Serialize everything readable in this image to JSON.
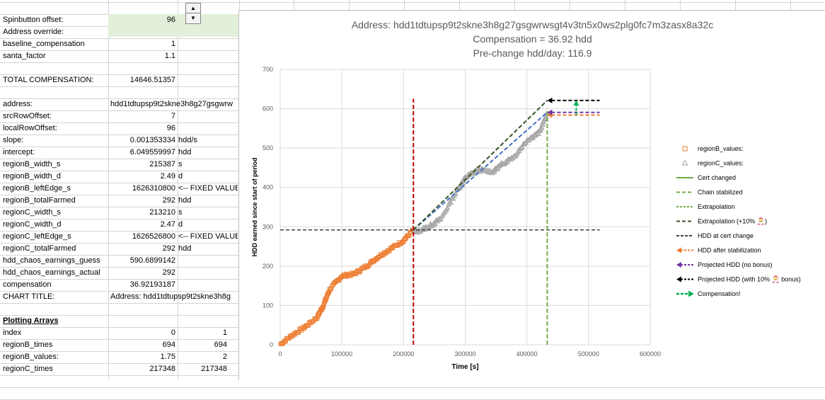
{
  "sheet": {
    "rows": [
      {
        "label": "Spinbutton offset:",
        "value": "96",
        "value2": ""
      },
      {
        "label": "Address override:",
        "value": "",
        "value2": ""
      },
      {
        "label": "baseline_compensation",
        "value": "1",
        "value2": ""
      },
      {
        "label": "santa_factor",
        "value": "1.1",
        "value2": ""
      },
      {
        "label": "",
        "value": "",
        "value2": ""
      },
      {
        "label": "TOTAL COMPENSATION:",
        "value": "14646.51357",
        "value2": ""
      },
      {
        "label": "",
        "value": "",
        "value2": ""
      },
      {
        "label": "address:",
        "value": "hdd1tdtupsp9t2skne3h8g27gsgwrw",
        "value2": ""
      },
      {
        "label": "srcRowOffset:",
        "value": "7",
        "value2": ""
      },
      {
        "label": "localRowOffset:",
        "value": "96",
        "value2": ""
      },
      {
        "label": "slope:",
        "value": "0.001353334",
        "value2": "hdd/s"
      },
      {
        "label": "intercept:",
        "value": "6.049559997",
        "value2": "hdd"
      },
      {
        "label": "regionB_width_s",
        "value": "215387",
        "value2": "s"
      },
      {
        "label": "regionB_width_d",
        "value": "2.49",
        "value2": "d"
      },
      {
        "label": "regionB_leftEdge_s",
        "value": "1626310800",
        "value2": "<-- FIXED VALUE"
      },
      {
        "label": "regionB_totalFarmed",
        "value": "292",
        "value2": "hdd"
      },
      {
        "label": "regionC_width_s",
        "value": "213210",
        "value2": "s"
      },
      {
        "label": "regionC_width_d",
        "value": "2.47",
        "value2": "d"
      },
      {
        "label": "regionC_leftEdge_s",
        "value": "1626526800",
        "value2": "<-- FIXED VALUE"
      },
      {
        "label": "regionC_totalFarmed",
        "value": "292",
        "value2": "hdd"
      },
      {
        "label": "hdd_chaos_earnings_guess",
        "value": "590.6899142",
        "value2": ""
      },
      {
        "label": "hdd_chaos_earnings_actual",
        "value": "292",
        "value2": ""
      },
      {
        "label": "compensation",
        "value": "36.92193187",
        "value2": ""
      },
      {
        "label": "CHART TITLE:",
        "value": "Address: hdd1tdtupsp9t2skne3h8g",
        "value2": ""
      },
      {
        "label": "",
        "value": "",
        "value2": ""
      },
      {
        "label": "Plotting Arrays",
        "value": "",
        "value2": ""
      },
      {
        "label": "index",
        "value": "0",
        "value2": "1"
      },
      {
        "label": "regionB_times",
        "value": "694",
        "value2": "694"
      },
      {
        "label": "regionB_values:",
        "value": "1.75",
        "value2": "2"
      },
      {
        "label": "regionC_times",
        "value": "217348",
        "value2": "217348"
      },
      {
        "label": "",
        "value": "",
        "value2": ""
      }
    ]
  },
  "colors": {
    "regionB": "#ed7d31",
    "regionC": "#a5a5a5",
    "cert_changed": "#c00000",
    "chain_stabilized": "#70ad47",
    "extrapolation": "#4472c4",
    "extrapolation_bonus": "#375623",
    "hdd_at_cert": "#404040",
    "hdd_after_stab": "#ed7d31",
    "projected_no_bonus": "#7030a0",
    "projected_bonus": "#000000",
    "compensation": "#00b050"
  },
  "chart_data": {
    "type": "scatter",
    "title": "Address: hdd1tdtupsp9t2skne3h8g27gsgwrwsgt4v3tn5x0ws2plg0fc7m3zasx8a32c",
    "subtitle1": "Compensation = 36.92 hdd",
    "subtitle2": "Pre-change hdd/day: 116.9",
    "xlabel": "Time [s]",
    "ylabel": "HDD earned since start of period",
    "xlim": [
      0,
      600000
    ],
    "ylim": [
      0,
      700
    ],
    "xticks": [
      0,
      100000,
      200000,
      300000,
      400000,
      500000,
      600000
    ],
    "yticks": [
      0,
      100,
      200,
      300,
      400,
      500,
      600,
      700
    ],
    "grid": true,
    "legend_position": "right",
    "legend": [
      "regionB_values:",
      "regionC_values:",
      "Cert changed",
      "Chain stabilized",
      "Extrapolation",
      "Extrapolation (+10% 🎅)",
      "HDD at cert change",
      "HDD after stabilization",
      "Projected HDD (no bonus)",
      "Projected HDD (with 10% 🎅 bonus)",
      "Compensation!"
    ],
    "regionB_anchors": [
      [
        694,
        2
      ],
      [
        20000,
        25
      ],
      [
        40000,
        45
      ],
      [
        60000,
        70
      ],
      [
        70000,
        100
      ],
      [
        80000,
        140
      ],
      [
        100000,
        175
      ],
      [
        120000,
        180
      ],
      [
        140000,
        200
      ],
      [
        160000,
        225
      ],
      [
        180000,
        245
      ],
      [
        200000,
        265
      ],
      [
        216000,
        292
      ]
    ],
    "regionC_anchors": [
      [
        217348,
        285
      ],
      [
        240000,
        300
      ],
      [
        260000,
        320
      ],
      [
        290000,
        400
      ],
      [
        300000,
        425
      ],
      [
        320000,
        445
      ],
      [
        345000,
        440
      ],
      [
        360000,
        460
      ],
      [
        380000,
        480
      ],
      [
        400000,
        520
      ],
      [
        420000,
        540
      ],
      [
        433000,
        588
      ]
    ],
    "cert_changed_x": 216000,
    "cert_changed_range": [
      0,
      625
    ],
    "chain_stabilized_x": 433000,
    "chain_stabilized_range": [
      0,
      600
    ],
    "extrapolation": [
      [
        216000,
        292
      ],
      [
        433000,
        590.7
      ]
    ],
    "extrapolation_bonus": [
      [
        216000,
        292
      ],
      [
        433000,
        621
      ]
    ],
    "hdd_at_cert_change": [
      [
        0,
        292
      ],
      [
        518000,
        292
      ]
    ],
    "hdd_after_stabilization": [
      [
        433000,
        584
      ],
      [
        518000,
        584
      ]
    ],
    "projected_no_bonus": [
      [
        433000,
        590.7
      ],
      [
        518000,
        590.7
      ]
    ],
    "projected_with_bonus": [
      [
        433000,
        621
      ],
      [
        518000,
        621
      ]
    ],
    "compensation_arrow": [
      [
        480000,
        584
      ],
      [
        480000,
        621
      ]
    ]
  }
}
